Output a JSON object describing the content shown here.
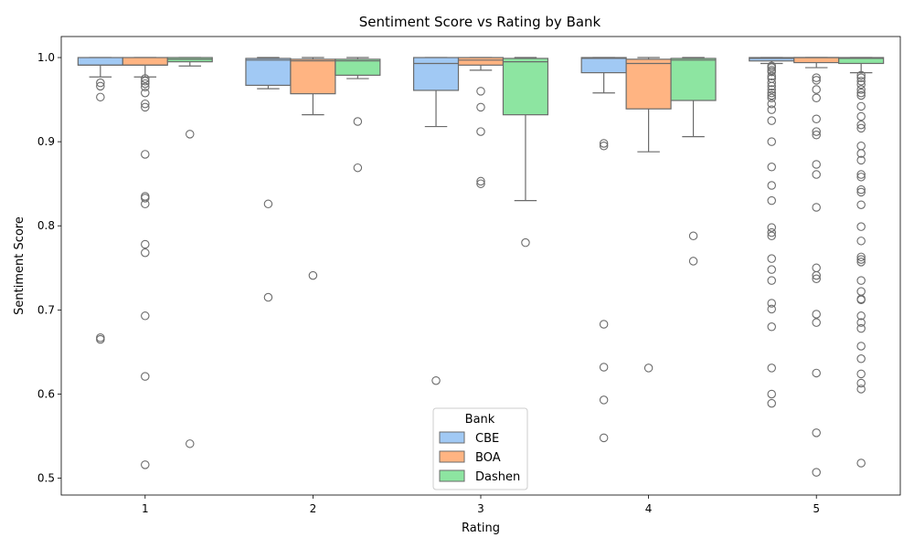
{
  "chart_data": {
    "type": "box",
    "title": "Sentiment Score vs Rating by Bank",
    "xlabel": "Rating",
    "ylabel": "Sentiment Score",
    "categories": [
      "1",
      "2",
      "3",
      "4",
      "5"
    ],
    "ylim": [
      0.48,
      1.025
    ],
    "yticks": [
      "0.5",
      "0.6",
      "0.7",
      "0.8",
      "0.9",
      "1.0"
    ],
    "grid": false,
    "legend": {
      "title": "Bank",
      "position": "bottom-center"
    },
    "series": [
      {
        "name": "CBE",
        "color": "#a1c9f4",
        "boxes": [
          {
            "q1": 0.991,
            "median": 0.991,
            "q3": 1.0,
            "whisker_low": 0.977,
            "whisker_high": 1.0,
            "outliers": [
              0.97,
              0.966,
              0.953,
              0.667,
              0.665
            ]
          },
          {
            "q1": 0.967,
            "median": 0.997,
            "q3": 0.999,
            "whisker_low": 0.963,
            "whisker_high": 1.0,
            "outliers": [
              0.826,
              0.715
            ]
          },
          {
            "q1": 0.961,
            "median": 0.993,
            "q3": 1.0,
            "whisker_low": 0.918,
            "whisker_high": 1.0,
            "outliers": [
              0.616
            ]
          },
          {
            "q1": 0.982,
            "median": 0.999,
            "q3": 1.0,
            "whisker_low": 0.958,
            "whisker_high": 1.0,
            "outliers": [
              0.898,
              0.895,
              0.683,
              0.632,
              0.593,
              0.548
            ]
          },
          {
            "q1": 0.996,
            "median": 0.999,
            "q3": 1.0,
            "whisker_low": 0.993,
            "whisker_high": 1.0,
            "outliers": [
              0.99,
              0.988,
              0.985,
              0.983,
              0.978,
              0.975,
              0.97,
              0.966,
              0.962,
              0.958,
              0.955,
              0.952,
              0.945,
              0.938,
              0.925,
              0.9,
              0.87,
              0.848,
              0.83,
              0.798,
              0.792,
              0.788,
              0.761,
              0.748,
              0.735,
              0.708,
              0.701,
              0.68,
              0.631,
              0.6,
              0.589
            ]
          }
        ]
      },
      {
        "name": "BOA",
        "color": "#ffb482",
        "boxes": [
          {
            "q1": 0.991,
            "median": 0.991,
            "q3": 1.0,
            "whisker_low": 0.977,
            "whisker_high": 1.0,
            "outliers": [
              0.975,
              0.972,
              0.969,
              0.965,
              0.958,
              0.945,
              0.941,
              0.885,
              0.835,
              0.833,
              0.826,
              0.778,
              0.768,
              0.693,
              0.621,
              0.516
            ]
          },
          {
            "q1": 0.957,
            "median": 0.996,
            "q3": 0.998,
            "whisker_low": 0.932,
            "whisker_high": 1.0,
            "outliers": [
              0.741
            ]
          },
          {
            "q1": 0.991,
            "median": 0.997,
            "q3": 1.0,
            "whisker_low": 0.985,
            "whisker_high": 1.0,
            "outliers": [
              0.96,
              0.941,
              0.912,
              0.853,
              0.85
            ]
          },
          {
            "q1": 0.939,
            "median": 0.993,
            "q3": 0.998,
            "whisker_low": 0.888,
            "whisker_high": 1.0,
            "outliers": [
              0.631
            ]
          },
          {
            "q1": 0.994,
            "median": 1.0,
            "q3": 1.0,
            "whisker_low": 0.988,
            "whisker_high": 1.0,
            "outliers": [
              0.976,
              0.973,
              0.962,
              0.952,
              0.927,
              0.912,
              0.908,
              0.873,
              0.861,
              0.822,
              0.75,
              0.741,
              0.737,
              0.695,
              0.685,
              0.625,
              0.554,
              0.507
            ]
          }
        ]
      },
      {
        "name": "Dashen",
        "color": "#8de5a1",
        "boxes": [
          {
            "q1": 0.995,
            "median": 0.998,
            "q3": 1.0,
            "whisker_low": 0.99,
            "whisker_high": 1.0,
            "outliers": [
              0.909,
              0.541
            ]
          },
          {
            "q1": 0.979,
            "median": 0.996,
            "q3": 0.998,
            "whisker_low": 0.975,
            "whisker_high": 1.0,
            "outliers": [
              0.924,
              0.869
            ]
          },
          {
            "q1": 0.932,
            "median": 0.995,
            "q3": 0.999,
            "whisker_low": 0.83,
            "whisker_high": 1.0,
            "outliers": [
              0.78
            ]
          },
          {
            "q1": 0.949,
            "median": 0.997,
            "q3": 0.999,
            "whisker_low": 0.906,
            "whisker_high": 1.0,
            "outliers": [
              0.788,
              0.758
            ]
          },
          {
            "q1": 0.993,
            "median": 0.999,
            "q3": 1.0,
            "whisker_low": 0.982,
            "whisker_high": 1.0,
            "outliers": [
              0.979,
              0.976,
              0.972,
              0.968,
              0.962,
              0.958,
              0.955,
              0.942,
              0.93,
              0.92,
              0.916,
              0.895,
              0.886,
              0.878,
              0.861,
              0.858,
              0.843,
              0.84,
              0.825,
              0.799,
              0.782,
              0.763,
              0.76,
              0.757,
              0.735,
              0.722,
              0.713,
              0.712,
              0.693,
              0.685,
              0.678,
              0.657,
              0.642,
              0.624,
              0.613,
              0.606,
              0.518
            ]
          }
        ]
      }
    ]
  }
}
